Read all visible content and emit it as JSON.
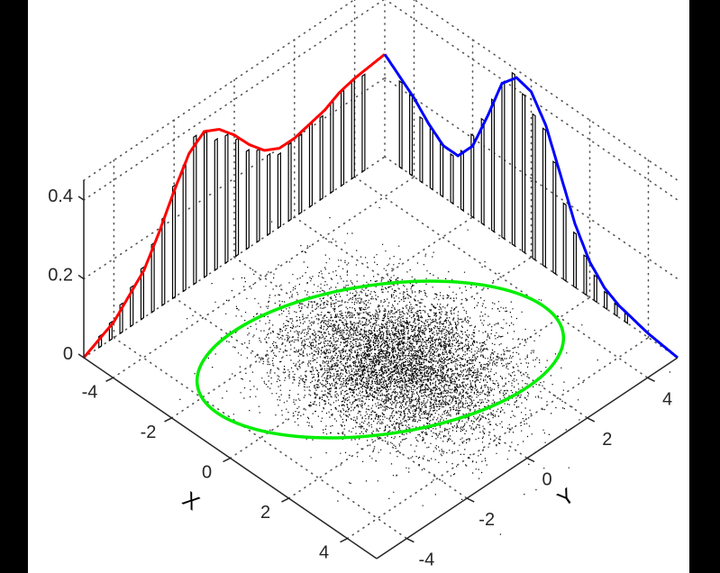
{
  "chart_data": {
    "type": "3d-scatter-with-marginal-histograms",
    "title": "",
    "xlabel": "X",
    "ylabel": "Y",
    "zlabel": "",
    "x_ticks": [
      "-4",
      "-2",
      "0",
      "2",
      "4"
    ],
    "y_ticks": [
      "-4",
      "-2",
      "0",
      "2",
      "4"
    ],
    "z_ticks": [
      "0",
      "0.2",
      "0.4"
    ],
    "xlim": [
      -5,
      5
    ],
    "ylim": [
      -5,
      5
    ],
    "zlim": [
      0,
      0.45
    ],
    "grid": true,
    "series": [
      {
        "name": "X marginal density",
        "type": "line",
        "color": "#ff0000",
        "x": [
          -5,
          -4,
          -3,
          -2.5,
          -2,
          -1.5,
          -1,
          -0.5,
          0,
          0.5,
          1,
          1.5,
          2,
          2.5,
          3,
          3.5,
          4,
          5
        ],
        "values": [
          0.0,
          0.04,
          0.12,
          0.19,
          0.27,
          0.34,
          0.37,
          0.35,
          0.31,
          0.26,
          0.22,
          0.2,
          0.2,
          0.21,
          0.22,
          0.24,
          0.25,
          0.26
        ]
      },
      {
        "name": "Y marginal density",
        "type": "line",
        "color": "#0000ff",
        "x": [
          -5,
          -4,
          -3.5,
          -3,
          -2.5,
          -2,
          -1.5,
          -1,
          -0.5,
          0,
          0.5,
          1,
          1.5,
          2,
          2.5,
          3,
          4,
          5
        ],
        "values": [
          0.26,
          0.2,
          0.16,
          0.13,
          0.13,
          0.18,
          0.28,
          0.39,
          0.43,
          0.42,
          0.36,
          0.26,
          0.16,
          0.09,
          0.05,
          0.03,
          0.01,
          0.0
        ]
      },
      {
        "name": "X histogram",
        "type": "bar",
        "color": "#000000"
      },
      {
        "name": "Y histogram",
        "type": "bar",
        "color": "#000000"
      },
      {
        "name": "Samples",
        "type": "scatter",
        "color": "#000000",
        "center": [
          0.5,
          0.5
        ],
        "count_approx": 10000
      },
      {
        "name": "Confidence ellipse",
        "type": "ellipse",
        "color": "#00ee00"
      }
    ]
  }
}
